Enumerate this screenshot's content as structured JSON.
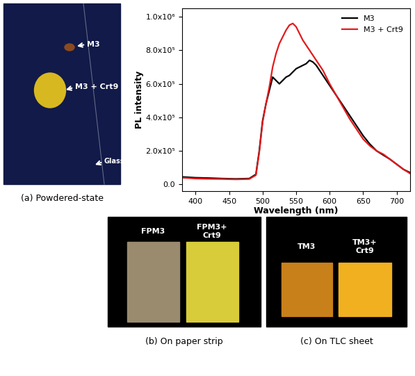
{
  "chart_data": {
    "type": "line",
    "x_label": "Wavelength (nm)",
    "y_label": "PL intensity",
    "x": [
      380,
      400,
      420,
      440,
      460,
      480,
      490,
      495,
      500,
      505,
      510,
      515,
      520,
      525,
      530,
      535,
      540,
      545,
      550,
      555,
      560,
      565,
      570,
      575,
      580,
      590,
      600,
      610,
      620,
      630,
      640,
      650,
      660,
      670,
      680,
      690,
      700,
      710,
      720
    ],
    "series": [
      {
        "name": "M3",
        "color": "#000000",
        "values": [
          45000,
          40000,
          38000,
          35000,
          33000,
          35000,
          60000,
          200000,
          380000,
          480000,
          560000,
          640000,
          620000,
          600000,
          620000,
          640000,
          650000,
          670000,
          690000,
          700000,
          710000,
          720000,
          740000,
          730000,
          710000,
          650000,
          590000,
          530000,
          470000,
          410000,
          350000,
          290000,
          240000,
          200000,
          175000,
          150000,
          120000,
          90000,
          70000
        ]
      },
      {
        "name": "M3 + Crt9",
        "color": "#e41a1c",
        "values": [
          40000,
          35000,
          33000,
          32000,
          30000,
          32000,
          55000,
          190000,
          370000,
          480000,
          580000,
          700000,
          780000,
          840000,
          880000,
          920000,
          950000,
          960000,
          940000,
          900000,
          860000,
          830000,
          800000,
          770000,
          740000,
          680000,
          600000,
          530000,
          460000,
          390000,
          330000,
          270000,
          230000,
          200000,
          180000,
          150000,
          120000,
          90000,
          65000
        ]
      }
    ],
    "xlim": [
      380,
      720
    ],
    "xticks": [
      400,
      450,
      500,
      550,
      600,
      650,
      700
    ],
    "ylim": [
      -40000,
      1050000
    ],
    "yticks": [
      {
        "value": 0,
        "label": "0.0"
      },
      {
        "value": 200000,
        "label": "2.0x10⁵"
      },
      {
        "value": 400000,
        "label": "4.0x10⁵"
      },
      {
        "value": 600000,
        "label": "6.0x10⁵"
      },
      {
        "value": 800000,
        "label": "8.0x10⁵"
      },
      {
        "value": 1000000,
        "label": "1.0x10⁶"
      }
    ],
    "legend": "upper right",
    "grid": false
  },
  "photos": {
    "a": {
      "caption": "(a) Powdered-state",
      "labels": [
        "M3",
        "M3 + Crt9",
        "Glass"
      ]
    },
    "b": {
      "caption": "(b) On paper strip",
      "labels": [
        "FPM3",
        "FPM3+\nCrt9"
      ]
    },
    "c": {
      "caption": "(c) On TLC sheet",
      "labels": [
        "TM3",
        "TM3+\nCrt9"
      ]
    }
  }
}
